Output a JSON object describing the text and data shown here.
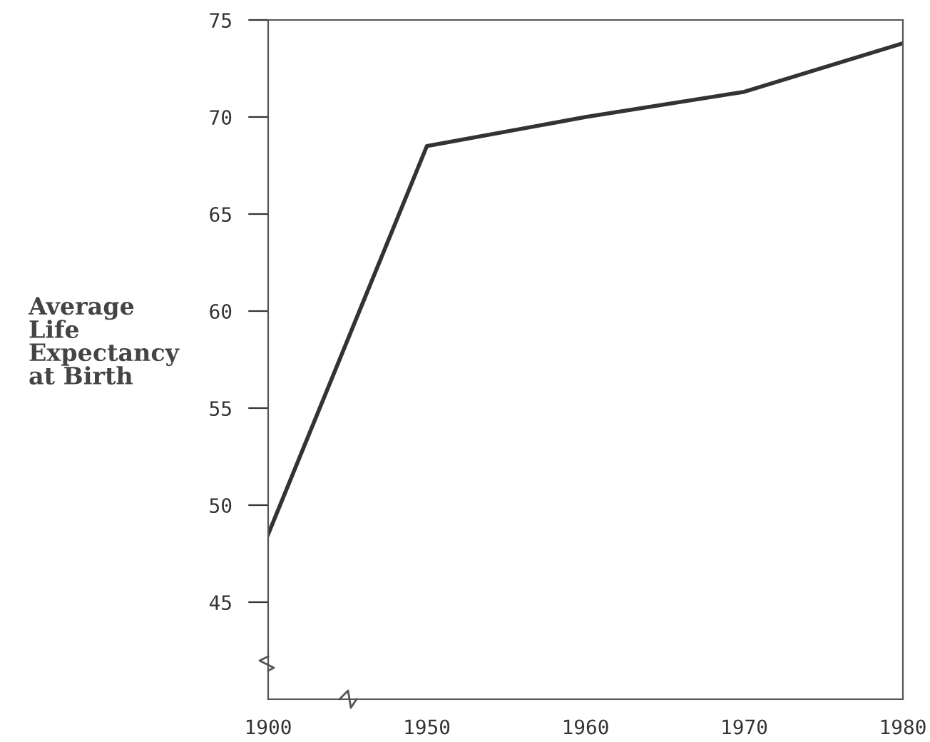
{
  "chart_data": {
    "type": "line",
    "ylabel": "Average\nLife\nExpectancy\nat Birth",
    "categories": [
      "1900",
      "1950",
      "1960",
      "1970",
      "1980"
    ],
    "series": [
      {
        "color": "#333333",
        "values": [
          48.5,
          68.5,
          70.0,
          71.3,
          73.8
        ]
      }
    ],
    "ylim": [
      40,
      75
    ],
    "yticks": [
      45,
      50,
      55,
      60,
      65,
      70,
      75
    ],
    "grid": false,
    "legend": false,
    "marker": "none",
    "line_style": "solid"
  }
}
